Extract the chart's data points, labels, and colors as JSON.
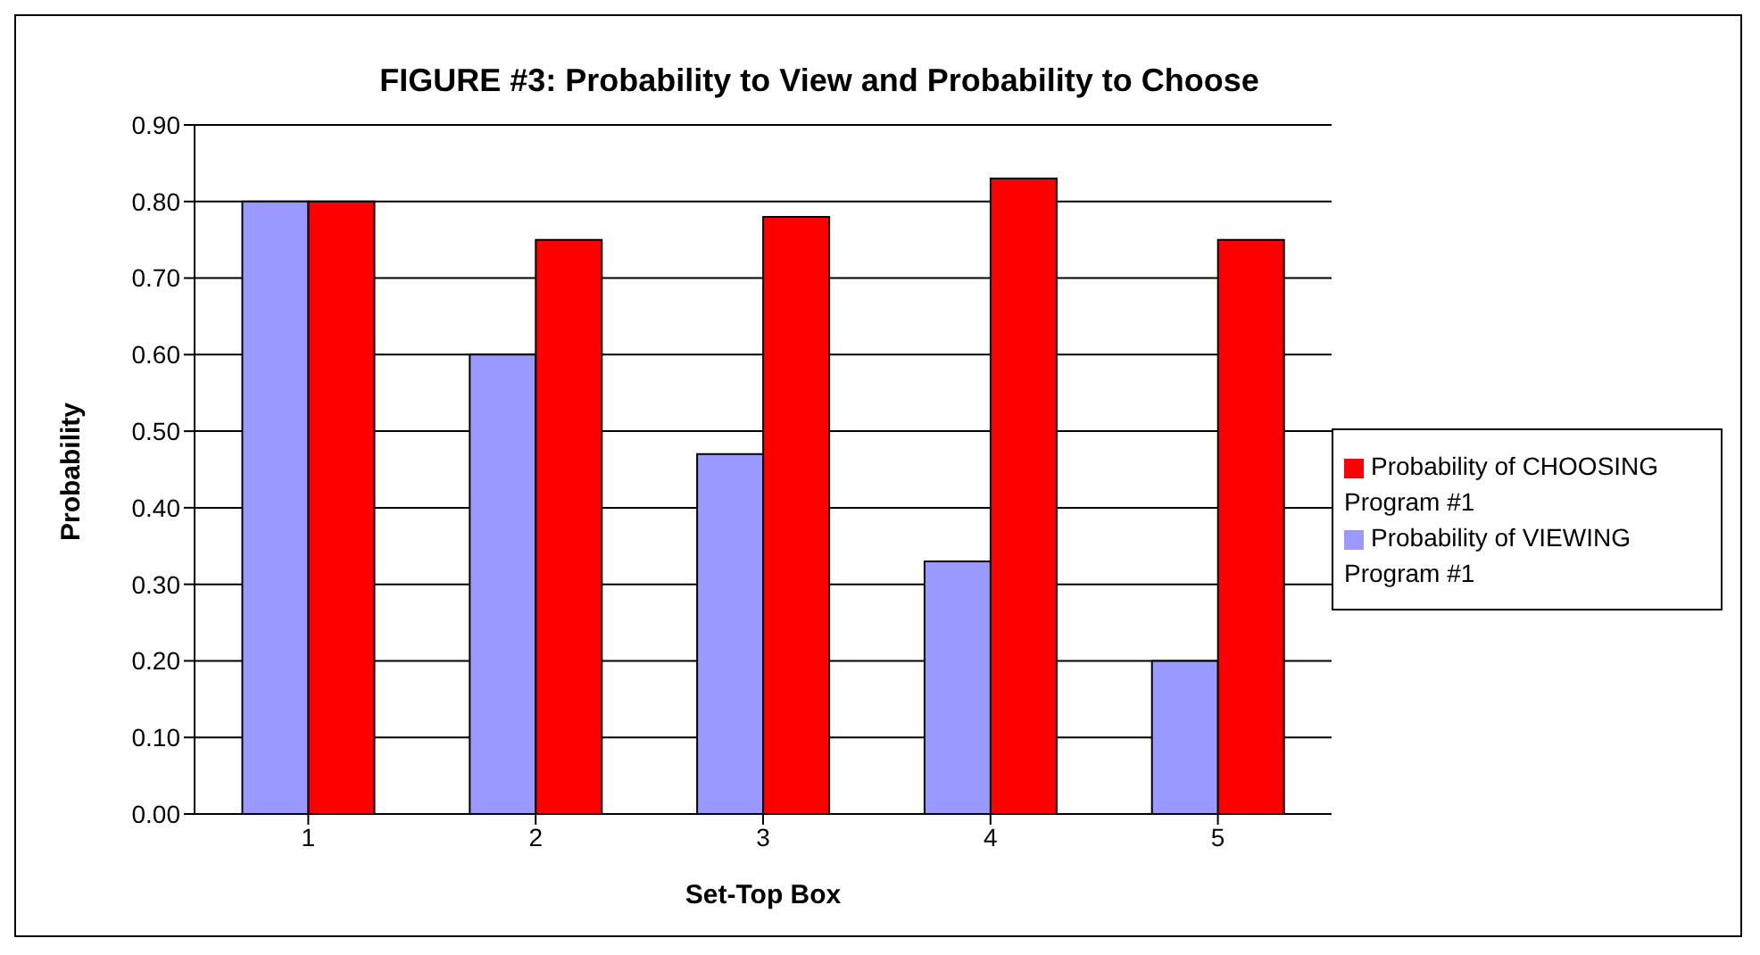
{
  "chart_data": {
    "type": "bar",
    "title": "FIGURE #3: Probability to View and Probability to Choose",
    "xlabel": "Set-Top Box",
    "ylabel": "Probability",
    "categories": [
      "1",
      "2",
      "3",
      "4",
      "5"
    ],
    "series": [
      {
        "name": "Probability of VIEWING Program #1",
        "color": "#9999ff",
        "values": [
          0.8,
          0.6,
          0.47,
          0.33,
          0.2
        ]
      },
      {
        "name": "Probability of CHOOSING Program #1",
        "color": "#ff0000",
        "values": [
          0.8,
          0.75,
          0.78,
          0.83,
          0.75
        ]
      }
    ],
    "ylim": [
      0,
      0.9
    ],
    "yticks": [
      {
        "value": 0,
        "label": "0.00"
      },
      {
        "value": 0.1,
        "label": "0.10"
      },
      {
        "value": 0.2,
        "label": "0.20"
      },
      {
        "value": 0.3,
        "label": "0.30"
      },
      {
        "value": 0.4,
        "label": "0.40"
      },
      {
        "value": 0.5,
        "label": "0.50"
      },
      {
        "value": 0.6,
        "label": "0.60"
      },
      {
        "value": 0.7,
        "label": "0.70"
      },
      {
        "value": 0.8,
        "label": "0.80"
      },
      {
        "value": 0.9,
        "label": "0.90"
      }
    ],
    "grid": "y",
    "legend": "right"
  }
}
